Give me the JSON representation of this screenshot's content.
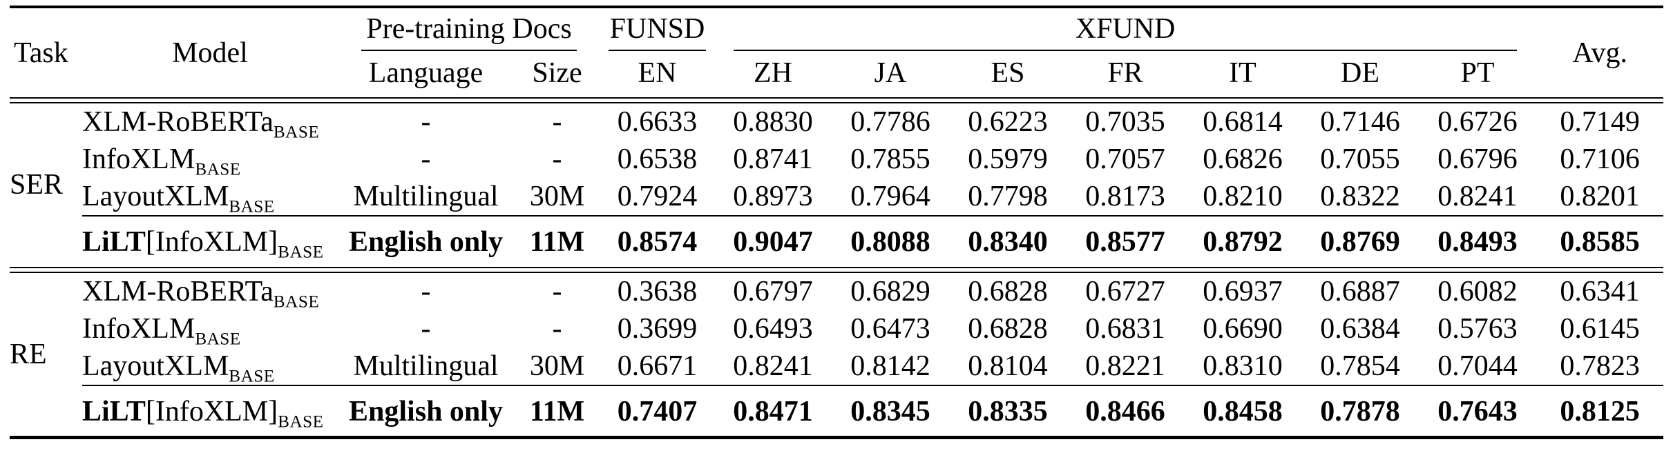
{
  "page": {
    "background": "#ffffff",
    "text_color": "#000000"
  },
  "table": {
    "header": {
      "task": "Task",
      "model": "Model",
      "pretraining_docs": "Pre-training Docs",
      "funsd": "FUNSD",
      "xfund": "XFUND",
      "avg": "Avg.",
      "subcolumns": [
        "Language",
        "Size",
        "EN",
        "ZH",
        "JA",
        "ES",
        "FR",
        "IT",
        "DE",
        "PT"
      ]
    },
    "sections": [
      {
        "task": "SER",
        "rows": [
          {
            "model": {
              "bold": "",
              "text": "XLM-RoBERTa",
              "sub": "BASE"
            },
            "language": "-",
            "size": "-",
            "scores": [
              "0.6633",
              "0.8830",
              "0.7786",
              "0.6223",
              "0.7035",
              "0.6814",
              "0.7146",
              "0.6726"
            ],
            "avg": "0.7149",
            "emphasis": false
          },
          {
            "model": {
              "bold": "",
              "text": "InfoXLM",
              "sub": "BASE"
            },
            "language": "-",
            "size": "-",
            "scores": [
              "0.6538",
              "0.8741",
              "0.7855",
              "0.5979",
              "0.7057",
              "0.6826",
              "0.7055",
              "0.6796"
            ],
            "avg": "0.7106",
            "emphasis": false
          },
          {
            "model": {
              "bold": "",
              "text": "LayoutXLM",
              "sub": "BASE"
            },
            "language": "Multilingual",
            "size": "30M",
            "scores": [
              "0.7924",
              "0.8973",
              "0.7964",
              "0.7798",
              "0.8173",
              "0.8210",
              "0.8322",
              "0.8241"
            ],
            "avg": "0.8201",
            "emphasis": false
          },
          {
            "model": {
              "bold": "LiLT",
              "text": "[InfoXLM]",
              "sub": "BASE"
            },
            "language": "English only",
            "size": "11M",
            "scores": [
              "0.8574",
              "0.9047",
              "0.8088",
              "0.8340",
              "0.8577",
              "0.8792",
              "0.8769",
              "0.8493"
            ],
            "avg": "0.8585",
            "emphasis": true
          }
        ]
      },
      {
        "task": "RE",
        "rows": [
          {
            "model": {
              "bold": "",
              "text": "XLM-RoBERTa",
              "sub": "BASE"
            },
            "language": "-",
            "size": "-",
            "scores": [
              "0.3638",
              "0.6797",
              "0.6829",
              "0.6828",
              "0.6727",
              "0.6937",
              "0.6887",
              "0.6082"
            ],
            "avg": "0.6341",
            "emphasis": false
          },
          {
            "model": {
              "bold": "",
              "text": "InfoXLM",
              "sub": "BASE"
            },
            "language": "-",
            "size": "-",
            "scores": [
              "0.3699",
              "0.6493",
              "0.6473",
              "0.6828",
              "0.6831",
              "0.6690",
              "0.6384",
              "0.5763"
            ],
            "avg": "0.6145",
            "emphasis": false
          },
          {
            "model": {
              "bold": "",
              "text": "LayoutXLM",
              "sub": "BASE"
            },
            "language": "Multilingual",
            "size": "30M",
            "scores": [
              "0.6671",
              "0.8241",
              "0.8142",
              "0.8104",
              "0.8221",
              "0.8310",
              "0.7854",
              "0.7044"
            ],
            "avg": "0.7823",
            "emphasis": false
          },
          {
            "model": {
              "bold": "LiLT",
              "text": "[InfoXLM]",
              "sub": "BASE"
            },
            "language": "English only",
            "size": "11M",
            "scores": [
              "0.7407",
              "0.8471",
              "0.8345",
              "0.8335",
              "0.8466",
              "0.8458",
              "0.7878",
              "0.7643"
            ],
            "avg": "0.8125",
            "emphasis": true
          }
        ]
      }
    ]
  }
}
